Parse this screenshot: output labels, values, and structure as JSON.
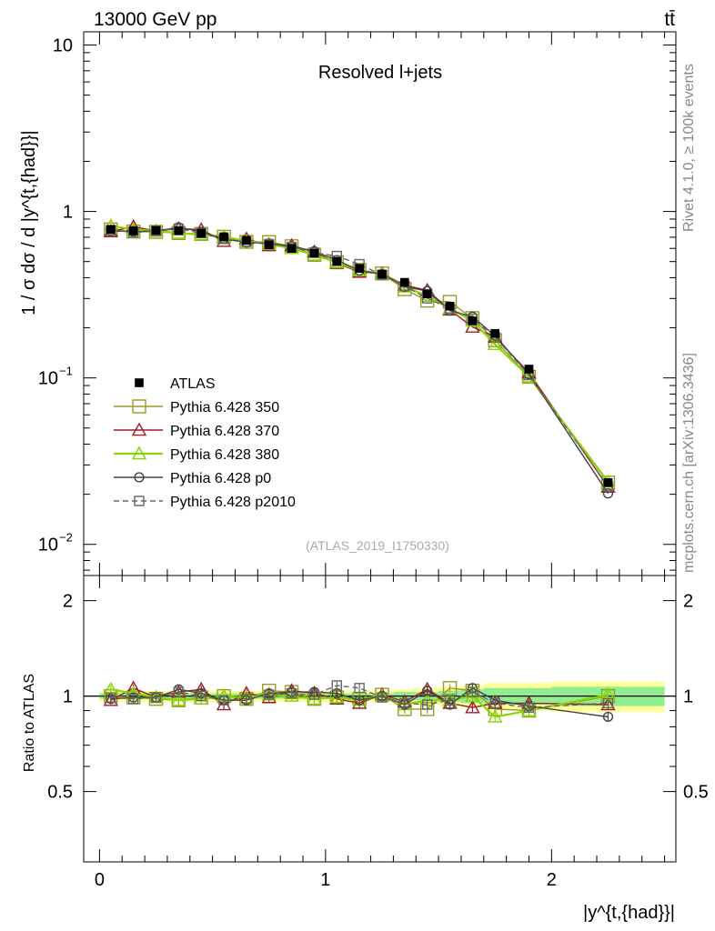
{
  "header": {
    "energy_label": "13000 GeV pp",
    "process_label": "tt̄",
    "side_label_rivet": "Rivet 4.1.0, ≥ 100k events",
    "side_label_mcplots": "mcplots.cern.ch [arXiv:1306.3436]"
  },
  "colors": {
    "atlas": "#000000",
    "p350": "#9a9a2a",
    "p370": "#a01c2a",
    "p380": "#88d600",
    "p0": "#444444",
    "p2010": "#666666",
    "band_inner": "#90ee90",
    "band_outer": "#ffff99"
  },
  "chart_data": {
    "type": "line",
    "title": "Resolved l+jets",
    "watermark": "(ATLAS_2019_I1750330)",
    "xlabel": "|y^{t,{had}}|",
    "ylabel": "1 / σ dσ / d |y^{t,{had}}|",
    "ratio_ylabel": "Ratio to ATLAS",
    "xlim": [
      -0.07,
      2.55
    ],
    "ylim": [
      0.0065,
      12
    ],
    "ratio_ylim": [
      0.3,
      2.4
    ],
    "x_ticks": [
      "0",
      "1",
      "2"
    ],
    "y_ticks": [
      "10^-2",
      "10^-1",
      "1",
      "10"
    ],
    "ratio_ticks": [
      "0.5",
      "1",
      "2"
    ],
    "bins": [
      [
        0,
        0.1
      ],
      [
        0.1,
        0.2
      ],
      [
        0.2,
        0.3
      ],
      [
        0.3,
        0.4
      ],
      [
        0.4,
        0.5
      ],
      [
        0.5,
        0.6
      ],
      [
        0.6,
        0.7
      ],
      [
        0.7,
        0.8
      ],
      [
        0.8,
        0.9
      ],
      [
        0.9,
        1.0
      ],
      [
        1.0,
        1.1
      ],
      [
        1.1,
        1.2
      ],
      [
        1.2,
        1.3
      ],
      [
        1.3,
        1.4
      ],
      [
        1.4,
        1.5
      ],
      [
        1.5,
        1.6
      ],
      [
        1.6,
        1.7
      ],
      [
        1.7,
        1.8
      ],
      [
        1.8,
        2.0
      ],
      [
        2.0,
        2.5
      ]
    ],
    "x": [
      0.05,
      0.15,
      0.25,
      0.35,
      0.45,
      0.55,
      0.65,
      0.75,
      0.85,
      0.95,
      1.05,
      1.15,
      1.25,
      1.35,
      1.45,
      1.55,
      1.65,
      1.75,
      1.9,
      2.25
    ],
    "atlas": {
      "name": "ATLAS",
      "values": [
        0.78,
        0.765,
        0.77,
        0.765,
        0.74,
        0.705,
        0.67,
        0.63,
        0.6,
        0.56,
        0.5,
        0.455,
        0.42,
        0.375,
        0.32,
        0.27,
        0.22,
        0.185,
        0.113,
        0.0235
      ],
      "band_inner": [
        0.02,
        0.02,
        0.02,
        0.02,
        0.02,
        0.02,
        0.02,
        0.02,
        0.02,
        0.02,
        0.02,
        0.02,
        0.02,
        0.03,
        0.03,
        0.04,
        0.05,
        0.06,
        0.06,
        0.07
      ],
      "band_outer": [
        0.04,
        0.04,
        0.04,
        0.04,
        0.04,
        0.04,
        0.04,
        0.04,
        0.04,
        0.04,
        0.04,
        0.04,
        0.04,
        0.05,
        0.06,
        0.07,
        0.08,
        0.1,
        0.1,
        0.11
      ]
    },
    "series": [
      {
        "name": "Pythia 6.428 350",
        "key": "p350",
        "marker": "square-open",
        "dash": false,
        "ratio": [
          1.0,
          0.99,
          0.98,
          0.97,
          0.99,
          1.0,
          0.98,
          1.04,
          1.03,
          0.98,
          0.99,
          0.98,
          1.01,
          0.91,
          0.91,
          1.06,
          1.04,
          0.91,
          0.9,
          1.0
        ]
      },
      {
        "name": "Pythia 6.428 370",
        "key": "p370",
        "marker": "triangle-open",
        "dash": false,
        "ratio": [
          0.97,
          1.06,
          0.99,
          1.03,
          1.05,
          0.94,
          1.02,
          0.99,
          1.04,
          1.02,
          0.98,
          0.95,
          1.01,
          0.96,
          1.05,
          0.95,
          0.92,
          0.95,
          0.95,
          0.94
        ]
      },
      {
        "name": "Pythia 6.428 380",
        "key": "p380",
        "marker": "triangle-open",
        "dash": false,
        "ratio": [
          1.05,
          1.02,
          0.99,
          0.97,
          0.98,
          1.0,
          0.99,
          1.01,
          1.0,
          0.98,
          0.99,
          0.97,
          1.0,
          0.94,
          0.97,
          0.97,
          1.0,
          0.86,
          0.9,
          1.01
        ]
      },
      {
        "name": "Pythia 6.428 p0",
        "key": "p0",
        "marker": "circle-open",
        "dash": false,
        "ratio": [
          0.98,
          0.99,
          0.99,
          1.05,
          1.02,
          0.97,
          0.97,
          1.02,
          1.03,
          1.03,
          1.02,
          0.97,
          1.0,
          0.94,
          1.04,
          0.94,
          1.06,
          0.97,
          0.93,
          0.86
        ]
      },
      {
        "name": "Pythia 6.428 p2010",
        "key": "p2010",
        "marker": "square-open",
        "dash": true,
        "ratio": [
          0.99,
          0.98,
          0.99,
          1.03,
          1.0,
          0.97,
          0.98,
          1.01,
          1.02,
          1.01,
          1.08,
          1.06,
          0.99,
          0.95,
          0.94,
          0.97,
          1.03,
          0.95,
          0.92,
          0.95
        ]
      }
    ]
  }
}
